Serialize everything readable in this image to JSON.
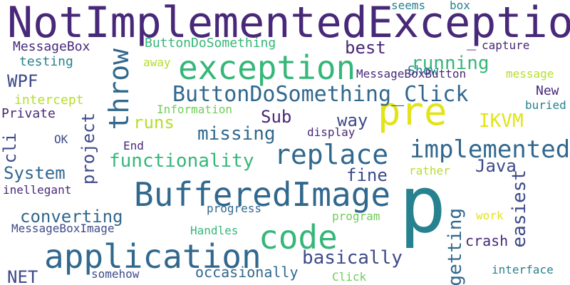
{
  "palette": {
    "dark_purple": "#482878",
    "indigo": "#3e4a89",
    "blue": "#31688e",
    "teal": "#26828e",
    "green": "#35b779",
    "light_green": "#6ece58",
    "yellow_green": "#b5de2b",
    "yellow": "#e2e418"
  },
  "words": [
    {
      "text": "NotImplementedException",
      "color": "#482878"
    },
    {
      "text": "exception",
      "color": "#35b779"
    },
    {
      "text": "p",
      "color": "#26828e"
    },
    {
      "text": "BufferedImage",
      "color": "#31688e"
    },
    {
      "text": "application",
      "color": "#31688e"
    },
    {
      "text": "code",
      "color": "#35b779"
    },
    {
      "text": "pre",
      "color": "#e2e418"
    },
    {
      "text": "replace",
      "color": "#31688e"
    },
    {
      "text": "implemented",
      "color": "#31688e"
    },
    {
      "text": "throw",
      "color": "#31688e"
    },
    {
      "text": "ButtonDoSomething_Click",
      "color": "#31688e"
    },
    {
      "text": "functionality",
      "color": "#35b779"
    },
    {
      "text": "missing",
      "color": "#31688e"
    },
    {
      "text": "running",
      "color": "#35b779"
    },
    {
      "text": "IKVM",
      "color": "#e2e418"
    },
    {
      "text": "easiest",
      "color": "#3e4a89"
    },
    {
      "text": "getting",
      "color": "#31688e"
    },
    {
      "text": "basically",
      "color": "#3e4a89"
    },
    {
      "text": "converting",
      "color": "#31688e"
    },
    {
      "text": "project",
      "color": "#3e4a89"
    },
    {
      "text": "System",
      "color": "#31688e"
    },
    {
      "text": "runs",
      "color": "#b5de2b"
    },
    {
      "text": "way",
      "color": "#3e4a89"
    },
    {
      "text": "Sub",
      "color": "#482878"
    },
    {
      "text": "fine",
      "color": "#3e4a89"
    },
    {
      "text": "Java",
      "color": "#3e4a89"
    },
    {
      "text": "best",
      "color": "#482878"
    },
    {
      "text": "WPF",
      "color": "#3e4a89"
    },
    {
      "text": "cli",
      "color": "#3e4a89"
    },
    {
      "text": "NET",
      "color": "#3e4a89"
    },
    {
      "text": "occasionally",
      "color": "#31688e"
    },
    {
      "text": "crash",
      "color": "#482878"
    },
    {
      "text": "New",
      "color": "#482878"
    },
    {
      "text": "Show",
      "color": "#26828e"
    },
    {
      "text": "MessageBox",
      "color": "#482878"
    },
    {
      "text": "ButtonDoSomething",
      "color": "#35b779"
    },
    {
      "text": "testing",
      "color": "#26828e"
    },
    {
      "text": "intercept",
      "color": "#b5de2b"
    },
    {
      "text": "Private",
      "color": "#482878"
    },
    {
      "text": "MessageBoxButton",
      "color": "#482878"
    },
    {
      "text": "Information",
      "color": "#6ece58"
    },
    {
      "text": "buried",
      "color": "#26828e"
    },
    {
      "text": "message",
      "color": "#b5de2b"
    },
    {
      "text": "capture",
      "color": "#482878"
    },
    {
      "text": "seems",
      "color": "#26828e"
    },
    {
      "text": "box",
      "color": "#26828e"
    },
    {
      "text": "away",
      "color": "#b5de2b"
    },
    {
      "text": "display",
      "color": "#482878"
    },
    {
      "text": "OK",
      "color": "#3e4a89"
    },
    {
      "text": "End",
      "color": "#482878"
    },
    {
      "text": "rather",
      "color": "#b5de2b"
    },
    {
      "text": "inellegant",
      "color": "#482878"
    },
    {
      "text": "progress",
      "color": "#31688e"
    },
    {
      "text": "program",
      "color": "#6ece58"
    },
    {
      "text": "work",
      "color": "#e2e418"
    },
    {
      "text": "MessageBoxImage",
      "color": "#3e4a89"
    },
    {
      "text": "Handles",
      "color": "#35b779"
    },
    {
      "text": "somehow",
      "color": "#3e4a89"
    },
    {
      "text": "Click",
      "color": "#6ece58"
    },
    {
      "text": "interface",
      "color": "#26828e"
    },
    {
      "text": "_",
      "color": "#482878"
    }
  ]
}
